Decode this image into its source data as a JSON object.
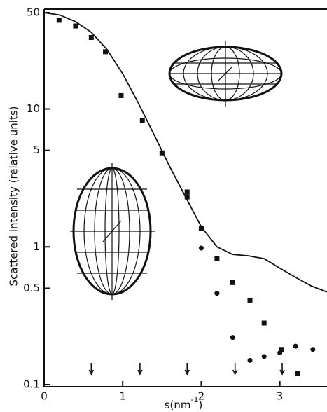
{
  "chart_data": {
    "type": "scatter",
    "y_label": "Scattered intensity (relative units)",
    "x_label": [
      "s(nm",
      "-1",
      ")"
    ],
    "xlim": [
      0,
      3.6
    ],
    "xticks": [
      0,
      1,
      2,
      3
    ],
    "ylim": [
      0.1,
      53
    ],
    "yticks": [
      0.1,
      0.5,
      1,
      5,
      10,
      50
    ],
    "log_y": true,
    "series": [
      {
        "marker": "square",
        "color": "#111",
        "x": [
          0.19,
          0.4,
          0.6,
          0.78,
          0.98,
          1.25,
          1.5,
          1.82,
          1.82,
          2.0,
          2.2,
          2.4,
          2.62,
          2.8,
          3.02,
          3.23
        ],
        "values": [
          44,
          40,
          33,
          26,
          12.5,
          8.2,
          4.8,
          2.5,
          2.3,
          1.36,
          0.82,
          0.55,
          0.41,
          0.28,
          0.18,
          0.12
        ]
      },
      {
        "marker": "circle",
        "color": "#111",
        "x": [
          2.0,
          2.2,
          2.4,
          2.62,
          2.8,
          3.0,
          3.2,
          3.42
        ],
        "values": [
          0.98,
          0.46,
          0.22,
          0.15,
          0.16,
          0.17,
          0.19,
          0.18
        ]
      },
      {
        "marker": "line",
        "color": "#111",
        "x": [
          0,
          0.2,
          0.4,
          0.6,
          0.8,
          1.0,
          1.2,
          1.4,
          1.6,
          1.8,
          2.0,
          2.2,
          2.4,
          2.6,
          2.8,
          3.0,
          3.2,
          3.4,
          3.6
        ],
        "values": [
          50,
          48,
          43,
          36,
          27,
          18,
          11,
          6.5,
          3.8,
          2.3,
          1.4,
          1.0,
          0.88,
          0.86,
          0.82,
          0.7,
          0.6,
          0.52,
          0.47
        ]
      }
    ],
    "arrows_x": [
      0.6,
      1.22,
      1.82,
      2.43,
      3.03
    ]
  }
}
